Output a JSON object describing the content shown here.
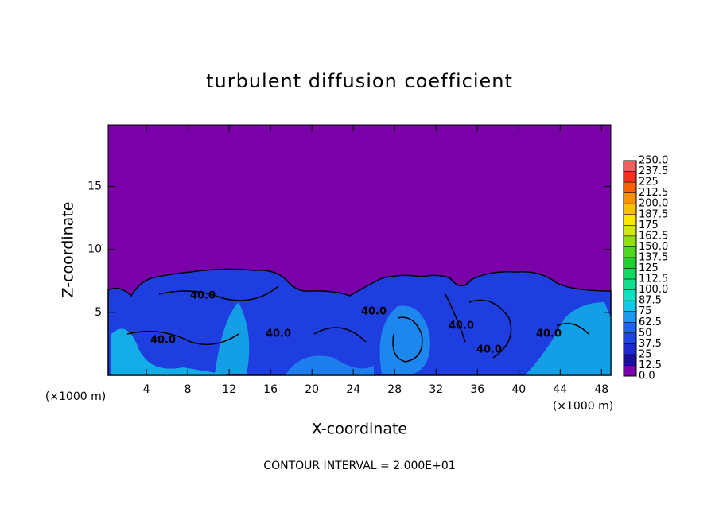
{
  "chart_data": {
    "type": "contour",
    "title": "turbulent diffusion coefficient",
    "xlabel": "X-coordinate",
    "ylabel": "Z-coordinate",
    "x_unit": "(×1000 m)",
    "y_unit": "(×1000 m)",
    "footnote": "CONTOUR INTERVAL = 2.000E+01",
    "xlim": [
      0.3,
      48.9
    ],
    "xticks": [
      4,
      8,
      12,
      16,
      20,
      24,
      28,
      32,
      36,
      40,
      44,
      48
    ],
    "ylim": [
      0,
      19.9
    ],
    "yticks": [
      5,
      10,
      15
    ],
    "contour_labels": [
      "40.0",
      "40.0",
      "40.0",
      "40.0",
      "40.0",
      "40.0",
      "40.0"
    ],
    "colorbar": {
      "levels": [
        {
          "value": 0,
          "label": "0.0"
        },
        12.5,
        25,
        37.5,
        50,
        62.5,
        75,
        87.5,
        {
          "value": 100,
          "label": "100.0"
        },
        112.5,
        125,
        137.5,
        {
          "value": 150,
          "label": "150.0"
        },
        162.5,
        175,
        187.5,
        {
          "value": 200,
          "label": "200.0"
        },
        212.5,
        225,
        237.5,
        {
          "value": 250,
          "label": "250.0"
        }
      ],
      "colors": [
        "#7a00a8",
        "#1a10a0",
        "#1c2ad0",
        "#1e46e6",
        "#1e66f0",
        "#1e9af2",
        "#10c8e8",
        "#10e0c0",
        "#10e090",
        "#10d860",
        "#20d030",
        "#50d820",
        "#90e010",
        "#d0e810",
        "#f8e800",
        "#f8c000",
        "#f89000",
        "#f86000",
        "#f83020",
        "#f06060"
      ]
    }
  }
}
